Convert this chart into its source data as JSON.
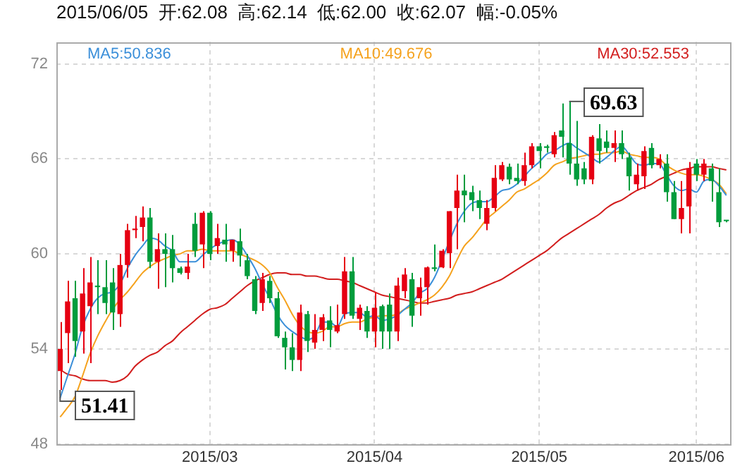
{
  "chart_data": {
    "type": "candlestick",
    "title": "2015/06/05  开:62.08  高:62.14  低:62.00  收:62.07  幅:-0.05%",
    "categories": [
      null,
      null,
      null,
      null,
      null,
      null,
      null,
      null,
      null,
      null,
      null,
      null,
      null,
      null,
      null,
      null,
      null,
      null,
      null,
      null,
      "2015/03",
      null,
      null,
      null,
      null,
      null,
      null,
      null,
      null,
      null,
      null,
      null,
      null,
      null,
      null,
      null,
      null,
      null,
      null,
      null,
      null,
      null,
      "2015/04",
      null,
      null,
      null,
      null,
      null,
      null,
      null,
      null,
      null,
      null,
      null,
      null,
      null,
      null,
      null,
      null,
      null,
      null,
      null,
      null,
      null,
      "2015/05",
      null,
      null,
      null,
      null,
      null,
      null,
      null,
      null,
      null,
      null,
      null,
      null,
      null,
      null,
      null,
      null,
      null,
      null,
      null,
      null,
      "2015/06",
      null,
      null,
      null,
      null
    ],
    "ohlc": [
      [
        52.6,
        55.7,
        51.41,
        54.0
      ],
      [
        55.0,
        58.3,
        53.1,
        57.0
      ],
      [
        57.2,
        58.3,
        53.5,
        54.5
      ],
      [
        55.1,
        59.1,
        53.7,
        57.5
      ],
      [
        56.7,
        59.8,
        53.1,
        58.2
      ],
      [
        58.0,
        59.6,
        56.2,
        57.9
      ],
      [
        57.9,
        59.6,
        56.2,
        56.9
      ],
      [
        58.2,
        59.1,
        55.2,
        56.3
      ],
      [
        56.2,
        60.0,
        55.4,
        59.3
      ],
      [
        59.3,
        61.9,
        58.5,
        61.5
      ],
      [
        61.5,
        62.4,
        61.0,
        61.6
      ],
      [
        61.7,
        63.0,
        60.8,
        62.3
      ],
      [
        62.3,
        62.9,
        59.1,
        59.5
      ],
      [
        59.5,
        61.3,
        57.8,
        60.3
      ],
      [
        60.3,
        61.3,
        57.9,
        60.0
      ],
      [
        60.3,
        61.2,
        58.2,
        59.1
      ],
      [
        59.1,
        59.2,
        58.7,
        58.8
      ],
      [
        58.8,
        60.0,
        58.4,
        59.2
      ],
      [
        61.9,
        62.6,
        59.8,
        60.2
      ],
      [
        60.6,
        62.7,
        59.1,
        62.6
      ],
      [
        62.6,
        62.7,
        59.6,
        60.0
      ],
      [
        60.5,
        61.9,
        60.0,
        61.0
      ],
      [
        60.9,
        61.9,
        59.5,
        60.6
      ],
      [
        60.2,
        60.9,
        59.5,
        60.9
      ],
      [
        60.8,
        61.6,
        59.2,
        59.9
      ],
      [
        59.6,
        60.0,
        58.4,
        58.6
      ],
      [
        58.4,
        58.6,
        56.2,
        56.4
      ],
      [
        56.9,
        58.8,
        56.4,
        58.4
      ],
      [
        58.3,
        58.6,
        56.9,
        57.2
      ],
      [
        57.2,
        57.6,
        54.7,
        54.8
      ],
      [
        54.7,
        55.1,
        52.7,
        54.1
      ],
      [
        54.1,
        55.0,
        52.6,
        53.3
      ],
      [
        53.3,
        56.8,
        52.6,
        56.3
      ],
      [
        56.2,
        56.4,
        53.8,
        54.5
      ],
      [
        54.4,
        56.2,
        54.0,
        55.2
      ],
      [
        55.2,
        56.2,
        54.5,
        56.0
      ],
      [
        55.8,
        56.7,
        54.1,
        55.2
      ],
      [
        55.1,
        56.8,
        55.0,
        55.5
      ],
      [
        56.2,
        59.8,
        55.9,
        58.9
      ],
      [
        58.9,
        59.8,
        55.9,
        56.1
      ],
      [
        55.9,
        56.8,
        55.2,
        56.6
      ],
      [
        56.4,
        56.7,
        54.7,
        55.1
      ],
      [
        55.1,
        57.6,
        54.1,
        56.6
      ],
      [
        56.7,
        56.8,
        54.0,
        55.1
      ],
      [
        56.8,
        57.5,
        54.0,
        55.1
      ],
      [
        55.1,
        58.5,
        54.5,
        58.0
      ],
      [
        57.65,
        59.1,
        57.2,
        58.7
      ],
      [
        58.4,
        58.8,
        55.4,
        56.1
      ],
      [
        57.2,
        58.5,
        56.1,
        57.9
      ],
      [
        57.9,
        59.2,
        56.8,
        59.15
      ],
      [
        59.15,
        60.6,
        58.9,
        59.05
      ],
      [
        59.15,
        60.3,
        59.1,
        60.2
      ],
      [
        60.05,
        62.7,
        59.1,
        62.7
      ],
      [
        62.9,
        65.0,
        60.3,
        64.0
      ],
      [
        64.0,
        65.0,
        62.0,
        63.7
      ],
      [
        63.9,
        64.3,
        62.7,
        63.4
      ],
      [
        63.4,
        64.0,
        62.2,
        62.9
      ],
      [
        61.9,
        63.4,
        61.5,
        62.9
      ],
      [
        62.9,
        65.6,
        62.7,
        64.8
      ],
      [
        64.7,
        65.8,
        64.6,
        65.6
      ],
      [
        65.5,
        65.7,
        64.4,
        64.7
      ],
      [
        64.8,
        65.7,
        64.4,
        64.6
      ],
      [
        64.6,
        66.4,
        64.3,
        65.6
      ],
      [
        65.6,
        67.0,
        65.4,
        66.8
      ],
      [
        66.8,
        67.0,
        65.4,
        66.5
      ],
      [
        66.8,
        66.9,
        66.4,
        66.7
      ],
      [
        66.3,
        67.7,
        66.1,
        67.5
      ],
      [
        67.8,
        69.5,
        66.1,
        67.4
      ],
      [
        67.0,
        69.63,
        65.0,
        65.7
      ],
      [
        65.7,
        68.4,
        64.3,
        64.7
      ],
      [
        65.4,
        65.8,
        64.4,
        64.7
      ],
      [
        64.7,
        67.5,
        64.4,
        67.4
      ],
      [
        67.3,
        68.2,
        65.7,
        66.5
      ],
      [
        67.1,
        67.8,
        66.4,
        66.7
      ],
      [
        66.7,
        67.8,
        65.8,
        67.0
      ],
      [
        67.0,
        67.8,
        66.0,
        66.3
      ],
      [
        66.1,
        66.4,
        64.0,
        64.9
      ],
      [
        64.4,
        65.7,
        64.0,
        65.0
      ],
      [
        64.9,
        66.8,
        64.1,
        66.5
      ],
      [
        66.7,
        67.0,
        65.4,
        65.6
      ],
      [
        65.6,
        66.3,
        65.4,
        66.0
      ],
      [
        65.7,
        66.3,
        63.3,
        63.9
      ],
      [
        63.9,
        64.6,
        62.2,
        62.2
      ],
      [
        62.2,
        64.6,
        61.3,
        62.9
      ],
      [
        63.0,
        65.8,
        61.3,
        65.4
      ],
      [
        65.7,
        66.0,
        64.6,
        65.0
      ],
      [
        65.0,
        66.0,
        64.6,
        65.7
      ],
      [
        65.4,
        65.7,
        63.3,
        64.6
      ],
      [
        63.9,
        65.4,
        61.7,
        62.0
      ],
      [
        62.08,
        62.14,
        62.0,
        62.07
      ]
    ],
    "colors": [
      "#e60012",
      "#e60012",
      "#009c3c",
      "#e60012",
      "#e60012",
      "#009c3c",
      "#009c3c",
      "#009c3c",
      "#e60012",
      "#e60012",
      "#e60012",
      "#e60012",
      "#009c3c",
      "#e60012",
      "#009c3c",
      "#009c3c",
      "#009c3c",
      "#e60012",
      "#009c3c",
      "#e60012",
      "#009c3c",
      "#e60012",
      "#009c3c",
      "#e60012",
      "#009c3c",
      "#009c3c",
      "#009c3c",
      "#e60012",
      "#009c3c",
      "#009c3c",
      "#009c3c",
      "#009c3c",
      "#e60012",
      "#009c3c",
      "#e60012",
      "#e60012",
      "#009c3c",
      "#e60012",
      "#e60012",
      "#009c3c",
      "#e60012",
      "#009c3c",
      "#e60012",
      "#009c3c",
      "#009c3c",
      "#e60012",
      "#e60012",
      "#009c3c",
      "#e60012",
      "#e60012",
      "#009c3c",
      "#e60012",
      "#e60012",
      "#e60012",
      "#009c3c",
      "#009c3c",
      "#009c3c",
      "#e60012",
      "#e60012",
      "#e60012",
      "#009c3c",
      "#009c3c",
      "#e60012",
      "#e60012",
      "#009c3c",
      "#009c3c",
      "#e60012",
      "#009c3c",
      "#009c3c",
      "#009c3c",
      "#009c3c",
      "#e60012",
      "#009c3c",
      "#009c3c",
      "#e60012",
      "#009c3c",
      "#009c3c",
      "#e60012",
      "#e60012",
      "#009c3c",
      "#e60012",
      "#009c3c",
      "#009c3c",
      "#e60012",
      "#e60012",
      "#009c3c",
      "#e60012",
      "#009c3c",
      "#009c3c",
      "#009c3c"
    ],
    "series": [
      {
        "type": "line",
        "name": "MA5:50.836",
        "color": "#3b8fd9",
        "values": [
          50.9,
          52.3,
          53.7,
          55.4,
          56.5,
          57.2,
          57.5,
          57.6,
          58.1,
          59.1,
          59.9,
          60.5,
          61.0,
          60.9,
          60.5,
          60.2,
          59.5,
          59.5,
          59.5,
          59.9,
          60.3,
          60.6,
          60.8,
          60.9,
          60.6,
          59.9,
          59.1,
          58.1,
          57.2,
          56.2,
          55.5,
          55.1,
          54.8,
          54.6,
          54.8,
          55.7,
          55.7,
          55.4,
          56.2,
          56.3,
          56.3,
          56.0,
          56.1,
          55.8,
          55.9,
          56.1,
          56.5,
          56.9,
          57.5,
          57.8,
          58.5,
          59.6,
          60.8,
          61.9,
          62.7,
          63.2,
          63.3,
          63.3,
          63.6,
          64.0,
          64.1,
          64.4,
          64.9,
          65.4,
          65.8,
          66.3,
          66.5,
          66.8,
          67.0,
          66.7,
          66.4,
          66.1,
          65.8,
          66.1,
          66.5,
          66.8,
          66.3,
          65.7,
          65.6,
          65.7,
          65.7,
          65.0,
          64.3,
          64.0,
          64.1,
          63.9,
          64.6,
          64.7,
          64.3,
          63.7
        ]
      },
      {
        "type": "line",
        "name": "MA10:49.676",
        "color": "#f5a21d",
        "values": [
          49.7,
          50.3,
          51.0,
          52.3,
          53.7,
          54.8,
          55.7,
          56.5,
          57.1,
          57.6,
          58.2,
          58.8,
          59.2,
          59.5,
          59.7,
          59.9,
          60.0,
          60.2,
          60.2,
          60.3,
          60.2,
          60.2,
          60.2,
          60.2,
          60.0,
          59.8,
          59.6,
          59.3,
          58.8,
          57.9,
          57.1,
          56.2,
          55.5,
          55.1,
          55.0,
          55.1,
          55.4,
          55.4,
          55.6,
          55.7,
          55.7,
          55.9,
          56.0,
          56.1,
          56.1,
          56.2,
          56.5,
          56.7,
          56.9,
          57.1,
          57.4,
          57.9,
          58.6,
          59.6,
          60.5,
          61.0,
          61.6,
          62.2,
          62.6,
          63.0,
          63.4,
          63.9,
          64.1,
          64.4,
          64.7,
          65.1,
          65.6,
          65.8,
          66.0,
          66.1,
          66.2,
          66.3,
          66.3,
          66.4,
          66.4,
          66.5,
          66.3,
          66.2,
          66.1,
          66.1,
          66.0,
          65.6,
          65.3,
          65.1,
          65.0,
          65.0,
          64.9,
          64.7,
          64.4,
          63.8
        ]
      },
      {
        "type": "line",
        "name": "MA30:52.553",
        "color": "#d21e1e",
        "values": [
          52.7,
          52.4,
          52.3,
          52.1,
          52.0,
          52.0,
          52.0,
          51.9,
          52.0,
          52.3,
          52.9,
          53.3,
          53.6,
          53.8,
          54.2,
          54.5,
          55.0,
          55.4,
          55.8,
          56.2,
          56.5,
          56.6,
          56.8,
          57.2,
          57.6,
          58.0,
          58.3,
          58.5,
          58.7,
          58.8,
          58.8,
          58.7,
          58.7,
          58.6,
          58.6,
          58.5,
          58.4,
          58.4,
          58.3,
          58.2,
          58.0,
          57.8,
          57.6,
          57.4,
          57.3,
          57.2,
          57.1,
          57.0,
          56.9,
          56.9,
          57.0,
          57.1,
          57.2,
          57.4,
          57.5,
          57.6,
          57.8,
          58.0,
          58.2,
          58.4,
          58.7,
          59.0,
          59.3,
          59.6,
          59.9,
          60.2,
          60.6,
          61.0,
          61.3,
          61.6,
          61.9,
          62.2,
          62.5,
          62.9,
          63.2,
          63.4,
          63.7,
          64.0,
          64.2,
          64.4,
          64.7,
          64.9,
          65.1,
          65.3,
          65.4,
          65.5,
          65.5,
          65.5,
          65.4,
          65.3
        ]
      }
    ],
    "ylim": [
      48,
      73.4
    ],
    "yticks": [
      48,
      54,
      60,
      66,
      72
    ],
    "grid": true,
    "legend": "top",
    "annotations": [
      {
        "text": "69.63",
        "y": 69.63
      },
      "51.41"
    ]
  }
}
